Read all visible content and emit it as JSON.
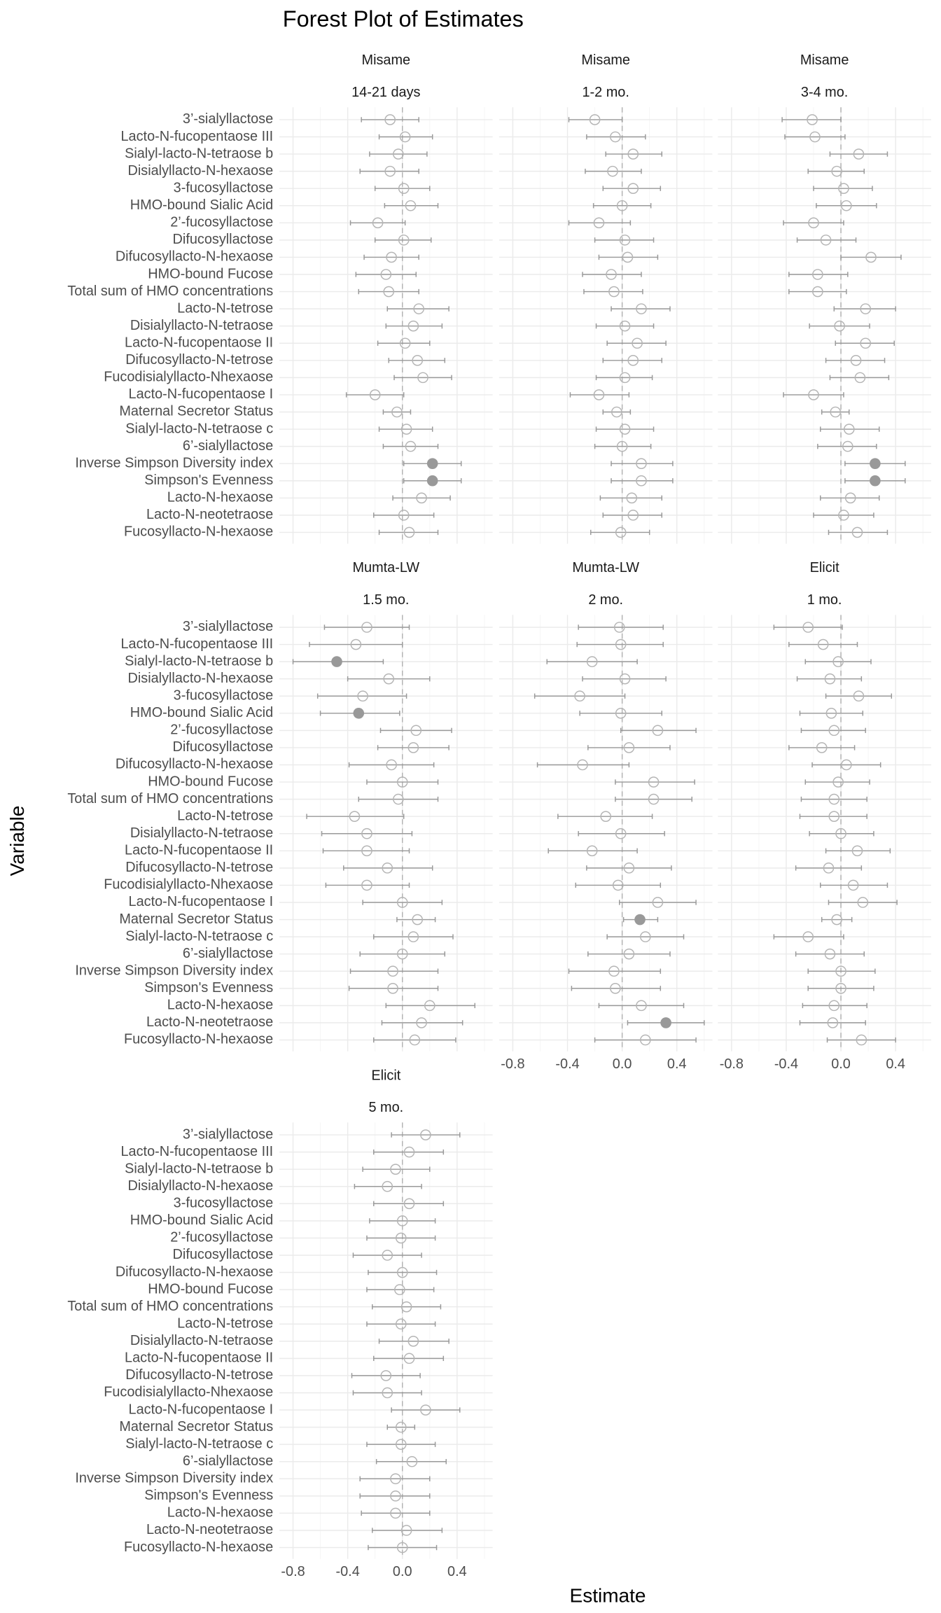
{
  "chart_data": {
    "type": "forest",
    "title": "Forest Plot of Estimates",
    "x_label": "Estimate",
    "y_label": "Variable",
    "categories": [
      "3’-sialyllactose",
      "Lacto-N-fucopentaose III",
      "Sialyl-lacto-N-tetraose b",
      "Disialyllacto-N-hexaose",
      "3-fucosyllactose",
      "HMO-bound Sialic Acid",
      "2’-fucosyllactose",
      "Difucosyllactose",
      "Difucosyllacto-N-hexaose",
      "HMO-bound Fucose",
      "Total sum of HMO concentrations",
      "Lacto-N-tetrose",
      "Disialyllacto-N-tetraose",
      "Lacto-N-fucopentaose II",
      "Difucosyllacto-N-tetrose",
      "Fucodisialyllacto-Nhexaose",
      "Lacto-N-fucopentaose I",
      "Maternal Secretor Status",
      "Sialyl-lacto-N-tetraose c",
      "6’-sialyllactose",
      "Inverse Simpson Diversity index",
      "Simpson's Evenness",
      "Lacto-N-hexaose",
      "Lacto-N-neotetraose",
      "Fucosyllacto-N-hexaose"
    ],
    "xlim": [
      -0.9,
      0.66
    ],
    "xticks": [
      -0.8,
      -0.4,
      {
        "value": 0,
        "label": "0.0"
      },
      0.4
    ],
    "reference_line": 0,
    "grid": true,
    "color": "#999999",
    "panels": [
      {
        "study": "Misame",
        "timepoint": "14-21 days",
        "estimate": [
          -0.09,
          0.02,
          -0.03,
          -0.09,
          0.01,
          0.06,
          -0.18,
          0.01,
          -0.08,
          -0.12,
          -0.1,
          0.12,
          0.08,
          0.02,
          0.11,
          0.15,
          -0.2,
          -0.04,
          0.03,
          0.06,
          0.22,
          0.22,
          0.14,
          0.01,
          0.05
        ],
        "lower": [
          -0.3,
          -0.17,
          -0.24,
          -0.31,
          -0.2,
          -0.13,
          -0.38,
          -0.2,
          -0.28,
          -0.34,
          -0.32,
          -0.11,
          -0.12,
          -0.18,
          -0.1,
          -0.06,
          -0.41,
          -0.14,
          -0.17,
          -0.14,
          0.01,
          0.01,
          -0.07,
          -0.21,
          -0.17
        ],
        "upper": [
          0.12,
          0.22,
          0.18,
          0.12,
          0.2,
          0.26,
          0.02,
          0.21,
          0.12,
          0.1,
          0.12,
          0.34,
          0.29,
          0.2,
          0.31,
          0.36,
          0.01,
          0.06,
          0.22,
          0.26,
          0.43,
          0.43,
          0.35,
          0.23,
          0.26
        ]
      },
      {
        "study": "Misame",
        "timepoint": "1-2 mo.",
        "estimate": [
          -0.2,
          -0.05,
          0.08,
          -0.07,
          0.08,
          0.0,
          -0.17,
          0.02,
          0.04,
          -0.08,
          -0.06,
          0.14,
          0.02,
          0.11,
          0.08,
          0.02,
          -0.17,
          -0.04,
          0.02,
          0.0,
          0.14,
          0.14,
          0.07,
          0.08,
          -0.01
        ],
        "lower": [
          -0.39,
          -0.26,
          -0.12,
          -0.27,
          -0.14,
          -0.21,
          -0.39,
          -0.2,
          -0.17,
          -0.29,
          -0.28,
          -0.08,
          -0.19,
          -0.11,
          -0.14,
          -0.19,
          -0.38,
          -0.14,
          -0.19,
          -0.2,
          -0.08,
          -0.08,
          -0.16,
          -0.14,
          -0.23
        ],
        "upper": [
          0.0,
          0.17,
          0.29,
          0.14,
          0.28,
          0.21,
          0.06,
          0.23,
          0.26,
          0.14,
          0.15,
          0.35,
          0.23,
          0.32,
          0.29,
          0.22,
          0.05,
          0.06,
          0.23,
          0.21,
          0.37,
          0.37,
          0.29,
          0.29,
          0.2
        ]
      },
      {
        "study": "Misame",
        "timepoint": "3-4 mo.",
        "estimate": [
          -0.21,
          -0.19,
          0.13,
          -0.03,
          0.02,
          0.04,
          -0.2,
          -0.11,
          0.22,
          -0.17,
          -0.17,
          0.18,
          -0.01,
          0.18,
          0.11,
          0.14,
          -0.2,
          -0.04,
          0.06,
          0.05,
          0.25,
          0.25,
          0.07,
          0.02,
          0.12
        ],
        "lower": [
          -0.43,
          -0.41,
          -0.08,
          -0.24,
          -0.2,
          -0.18,
          -0.42,
          -0.32,
          0.0,
          -0.38,
          -0.38,
          -0.05,
          -0.23,
          -0.04,
          -0.11,
          -0.08,
          -0.42,
          -0.14,
          -0.15,
          -0.17,
          0.03,
          0.03,
          -0.15,
          -0.2,
          -0.09
        ],
        "upper": [
          0.0,
          0.03,
          0.34,
          0.17,
          0.23,
          0.26,
          0.02,
          0.11,
          0.44,
          0.05,
          0.04,
          0.4,
          0.21,
          0.39,
          0.32,
          0.35,
          0.02,
          0.06,
          0.28,
          0.26,
          0.47,
          0.47,
          0.28,
          0.24,
          0.34
        ]
      },
      {
        "study": "Mumta-LW",
        "timepoint": "1.5 mo.",
        "estimate": [
          -0.26,
          -0.34,
          -0.48,
          -0.1,
          -0.29,
          -0.32,
          0.1,
          0.08,
          -0.08,
          0.0,
          -0.03,
          -0.35,
          -0.26,
          -0.26,
          -0.11,
          -0.26,
          0.0,
          0.11,
          0.08,
          0.0,
          -0.07,
          -0.07,
          0.2,
          0.14,
          0.09
        ],
        "lower": [
          -0.57,
          -0.68,
          -0.8,
          -0.4,
          -0.62,
          -0.6,
          -0.16,
          -0.18,
          -0.39,
          -0.26,
          -0.32,
          -0.7,
          -0.59,
          -0.58,
          -0.43,
          -0.56,
          -0.29,
          -0.04,
          -0.21,
          -0.31,
          -0.38,
          -0.39,
          -0.12,
          -0.15,
          -0.21
        ],
        "upper": [
          0.05,
          0.0,
          -0.14,
          0.2,
          0.03,
          -0.02,
          0.36,
          0.34,
          0.23,
          0.26,
          0.26,
          0.01,
          0.07,
          0.05,
          0.22,
          0.05,
          0.29,
          0.24,
          0.37,
          0.31,
          0.26,
          0.26,
          0.53,
          0.44,
          0.39
        ]
      },
      {
        "study": "Mumta-LW",
        "timepoint": "2 mo.",
        "estimate": [
          -0.02,
          -0.01,
          -0.22,
          0.02,
          -0.31,
          -0.01,
          0.26,
          0.05,
          -0.29,
          0.23,
          0.23,
          -0.12,
          -0.01,
          -0.22,
          0.05,
          -0.03,
          0.26,
          0.13,
          0.17,
          0.05,
          -0.06,
          -0.05,
          0.14,
          0.32,
          0.17
        ],
        "lower": [
          -0.32,
          -0.33,
          -0.55,
          -0.29,
          -0.64,
          -0.31,
          -0.01,
          -0.25,
          -0.62,
          -0.05,
          -0.05,
          -0.47,
          -0.32,
          -0.54,
          -0.26,
          -0.34,
          -0.02,
          0.01,
          -0.11,
          -0.25,
          -0.39,
          -0.37,
          -0.17,
          0.04,
          -0.2
        ],
        "upper": [
          0.3,
          0.3,
          0.11,
          0.32,
          0.02,
          0.29,
          0.54,
          0.35,
          0.05,
          0.53,
          0.51,
          0.22,
          0.31,
          0.11,
          0.36,
          0.28,
          0.54,
          0.26,
          0.45,
          0.35,
          0.28,
          0.28,
          0.45,
          0.6,
          0.54
        ]
      },
      {
        "study": "Elicit",
        "timepoint": "1 mo.",
        "estimate": [
          -0.24,
          -0.13,
          -0.02,
          -0.08,
          0.13,
          -0.07,
          -0.05,
          -0.14,
          0.04,
          -0.02,
          -0.05,
          -0.05,
          0.0,
          0.12,
          -0.09,
          0.09,
          0.16,
          -0.03,
          -0.24,
          -0.08,
          0.0,
          0.0,
          -0.05,
          -0.06,
          0.15
        ],
        "lower": [
          -0.49,
          -0.38,
          -0.26,
          -0.32,
          -0.11,
          -0.3,
          -0.29,
          -0.38,
          -0.21,
          -0.26,
          -0.29,
          -0.3,
          -0.23,
          -0.11,
          -0.33,
          -0.15,
          -0.09,
          -0.14,
          -0.49,
          -0.33,
          -0.24,
          -0.24,
          -0.28,
          -0.3,
          -0.1
        ],
        "upper": [
          0.01,
          0.12,
          0.22,
          0.15,
          0.37,
          0.16,
          0.18,
          0.1,
          0.29,
          0.21,
          0.19,
          0.19,
          0.24,
          0.36,
          0.15,
          0.34,
          0.41,
          0.08,
          0.02,
          0.17,
          0.25,
          0.24,
          0.19,
          0.18,
          0.4
        ]
      },
      {
        "study": "Elicit",
        "timepoint": "5 mo.",
        "estimate": [
          0.17,
          0.05,
          -0.05,
          -0.11,
          0.05,
          0.0,
          -0.01,
          -0.11,
          0.0,
          -0.02,
          0.03,
          -0.01,
          0.08,
          0.05,
          -0.12,
          -0.11,
          0.17,
          -0.01,
          -0.01,
          0.07,
          -0.05,
          -0.05,
          -0.05,
          0.03,
          0.0
        ],
        "lower": [
          -0.08,
          -0.21,
          -0.29,
          -0.35,
          -0.21,
          -0.24,
          -0.26,
          -0.36,
          -0.25,
          -0.26,
          -0.22,
          -0.26,
          -0.17,
          -0.21,
          -0.37,
          -0.36,
          -0.08,
          -0.11,
          -0.26,
          -0.19,
          -0.31,
          -0.31,
          -0.3,
          -0.22,
          -0.25
        ],
        "upper": [
          0.42,
          0.3,
          0.2,
          0.14,
          0.3,
          0.24,
          0.24,
          0.14,
          0.25,
          0.23,
          0.28,
          0.24,
          0.34,
          0.3,
          0.13,
          0.14,
          0.42,
          0.09,
          0.24,
          0.32,
          0.2,
          0.2,
          0.2,
          0.29,
          0.25
        ]
      }
    ]
  }
}
